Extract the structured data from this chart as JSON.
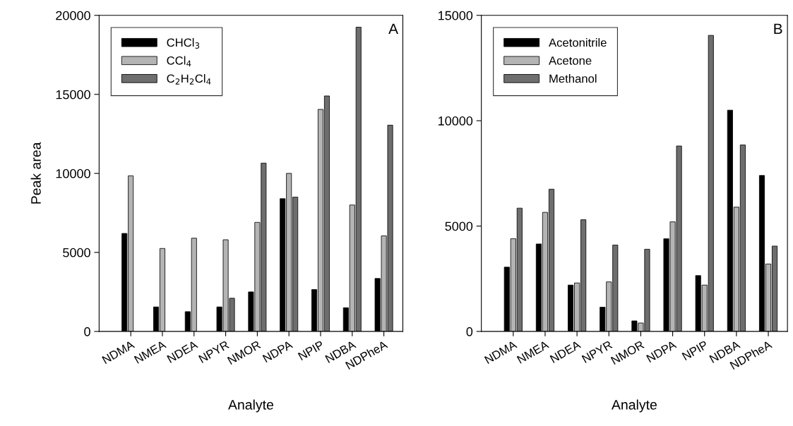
{
  "chart_data": [
    {
      "type": "bar",
      "xlabel": "Analyte",
      "ylabel": "Peak area",
      "annotations": [
        "A"
      ],
      "categories": [
        "NDMA",
        "NMEA",
        "NDEA",
        "NPYR",
        "NMOR",
        "NDPA",
        "NPIP",
        "NDBA",
        "NDPheA"
      ],
      "series": [
        {
          "name": "CHCl$_{3}$",
          "color": "#000000",
          "values": [
            6200,
            1550,
            1250,
            1550,
            2500,
            8400,
            2650,
            1500,
            3350
          ]
        },
        {
          "name": "CCl$_{4}$",
          "color": "#b4b4b4",
          "values": [
            9850,
            5250,
            5900,
            5800,
            6900,
            10000,
            14050,
            8000,
            6050
          ]
        },
        {
          "name": "C$_{2}$H$_{2}$Cl$_{4}$",
          "color": "#6e6e6e",
          "values": [
            null,
            null,
            null,
            2100,
            10650,
            8500,
            14900,
            19250,
            13050
          ]
        }
      ],
      "ylim": [
        0,
        20000
      ],
      "yticks": [
        0,
        5000,
        10000,
        15000,
        20000
      ],
      "grid": false,
      "legend": "top left"
    },
    {
      "type": "bar",
      "xlabel": "Analyte",
      "annotations": [
        "B"
      ],
      "categories": [
        "NDMA",
        "NMEA",
        "NDEA",
        "NPYR",
        "NMOR",
        "NDPA",
        "NPIP",
        "NDBA",
        "NDPheA"
      ],
      "series": [
        {
          "name": "Acetonitrile",
          "color": "#000000",
          "values": [
            3050,
            4150,
            2200,
            1150,
            500,
            4400,
            2650,
            10500,
            7400
          ]
        },
        {
          "name": "Acetone",
          "color": "#b4b4b4",
          "values": [
            4400,
            5650,
            2300,
            2350,
            400,
            5200,
            2200,
            5900,
            3200
          ]
        },
        {
          "name": "Methanol",
          "color": "#6e6e6e",
          "values": [
            5850,
            6750,
            5300,
            4100,
            3900,
            8800,
            14050,
            8850,
            4050
          ]
        }
      ],
      "ylim": [
        0,
        15000
      ],
      "yticks": [
        0,
        5000,
        10000,
        15000
      ],
      "grid": false,
      "legend": "top left"
    }
  ]
}
